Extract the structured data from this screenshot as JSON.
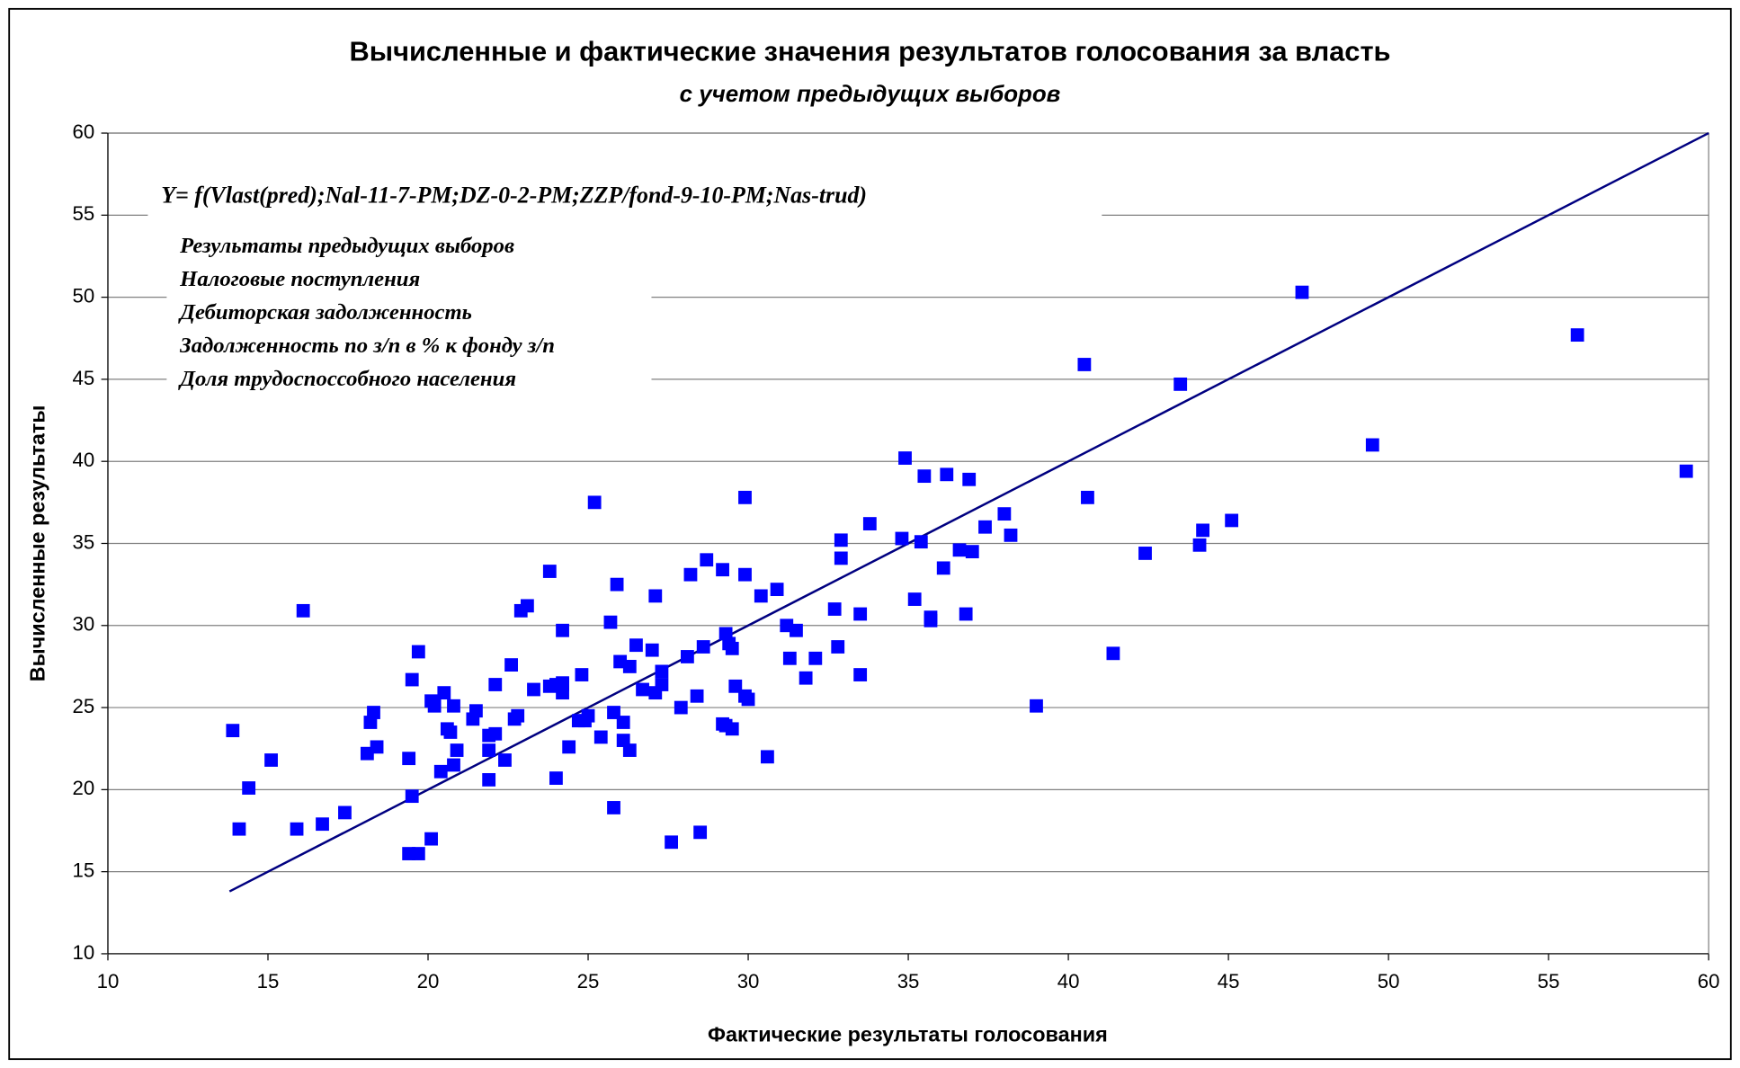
{
  "chart_data": {
    "type": "scatter",
    "title": "Вычисленные и фактические значения результатов голосования за власть",
    "subtitle": "с учетом предыдущих выборов",
    "x_label": "Фактические результаты голосования",
    "y_label": "Вычисленные результаты",
    "annotations": {
      "formula": "Y= f(Vlast(pred);Nal-11-7-PM;DZ-0-2-PM;ZZP/fond-9-10-PM;Nas-trud)",
      "factors": [
        "Результаты предыдущих выборов",
        "Налоговые поступления",
        "Дебиторская задолженность",
        "Задолженность по з/п в % к фонду з/п",
        "Доля трудоспоссобного населения"
      ]
    },
    "xlim": [
      10,
      60
    ],
    "xticks": [
      10,
      15,
      20,
      25,
      30,
      35,
      40,
      45,
      50,
      55,
      60
    ],
    "ylim": [
      10,
      60
    ],
    "yticks": [
      10,
      15,
      20,
      25,
      30,
      35,
      40,
      45,
      50,
      55,
      60
    ],
    "grid": true,
    "color": "#0000ff",
    "x": [
      13.9,
      14.1,
      14.4,
      15.1,
      15.9,
      16.1,
      16.7,
      17.4,
      18.1,
      18.2,
      18.3,
      18.4,
      19.4,
      19.5,
      19.5,
      19.7,
      19.4,
      19.7,
      20.1,
      20.1,
      20.2,
      20.4,
      20.5,
      20.6,
      20.7,
      20.8,
      20.8,
      20.9,
      21.4,
      21.5,
      21.9,
      21.9,
      21.9,
      22.1,
      22.1,
      22.4,
      22.6,
      22.7,
      22.8,
      22.9,
      23.1,
      23.3,
      23.8,
      23.8,
      24.0,
      24.0,
      24.2,
      24.2,
      24.2,
      24.2,
      24.4,
      24.8,
      24.7,
      24.9,
      25.0,
      25.2,
      25.4,
      25.7,
      25.9,
      25.8,
      25.8,
      26.0,
      26.1,
      26.1,
      26.3,
      26.3,
      26.5,
      26.7,
      27.0,
      27.1,
      27.1,
      27.3,
      27.3,
      27.6,
      27.9,
      28.1,
      28.2,
      28.4,
      28.5,
      28.6,
      28.7,
      29.2,
      29.2,
      29.3,
      29.3,
      29.4,
      29.5,
      29.5,
      29.6,
      29.9,
      29.9,
      29.9,
      30.0,
      30.4,
      30.6,
      30.9,
      31.2,
      31.3,
      31.5,
      31.8,
      32.1,
      32.7,
      32.8,
      32.9,
      32.9,
      33.5,
      33.5,
      33.8,
      34.8,
      34.9,
      35.2,
      35.4,
      35.5,
      35.7,
      35.7,
      36.1,
      36.2,
      36.6,
      36.8,
      36.9,
      37.0,
      37.4,
      38.0,
      38.2,
      39.0,
      40.5,
      40.6,
      41.4,
      42.4,
      43.5,
      44.1,
      44.2,
      45.1,
      47.3,
      49.5,
      55.9,
      59.3
    ],
    "values": [
      23.6,
      17.6,
      20.1,
      21.8,
      17.6,
      30.9,
      17.9,
      18.6,
      22.2,
      24.1,
      24.7,
      22.6,
      21.9,
      26.7,
      19.6,
      28.4,
      16.1,
      16.1,
      17.0,
      25.4,
      25.1,
      21.1,
      25.9,
      23.7,
      23.5,
      25.1,
      21.5,
      22.4,
      24.3,
      24.8,
      23.3,
      22.4,
      20.6,
      23.4,
      26.4,
      21.8,
      27.6,
      24.3,
      24.5,
      30.9,
      31.2,
      26.1,
      33.3,
      26.3,
      26.4,
      20.7,
      26.4,
      25.9,
      29.7,
      26.5,
      22.6,
      27.0,
      24.2,
      24.2,
      24.5,
      37.5,
      23.2,
      30.2,
      32.5,
      24.7,
      18.9,
      27.8,
      24.1,
      23.0,
      27.5,
      22.4,
      28.8,
      26.1,
      28.5,
      31.8,
      25.9,
      26.4,
      27.2,
      16.8,
      25.0,
      28.1,
      33.1,
      25.7,
      17.4,
      28.7,
      34.0,
      33.4,
      24.0,
      29.5,
      23.9,
      28.9,
      28.6,
      23.7,
      26.3,
      33.1,
      37.8,
      25.7,
      25.5,
      31.8,
      22.0,
      32.2,
      30.0,
      28.0,
      29.7,
      26.8,
      28.0,
      31.0,
      28.7,
      35.2,
      34.1,
      30.7,
      27.0,
      36.2,
      35.3,
      40.2,
      31.6,
      35.1,
      39.1,
      30.5,
      30.3,
      33.5,
      39.2,
      34.6,
      30.7,
      38.9,
      34.5,
      36.0,
      36.8,
      35.5,
      25.1,
      45.9,
      37.8,
      28.3,
      34.4,
      44.7,
      34.9,
      35.8,
      36.4,
      50.3,
      41.0,
      47.7,
      39.4
    ],
    "fit_line": {
      "x": [
        13.8,
        60
      ],
      "values": [
        13.8,
        60
      ],
      "color": "#000080"
    }
  }
}
